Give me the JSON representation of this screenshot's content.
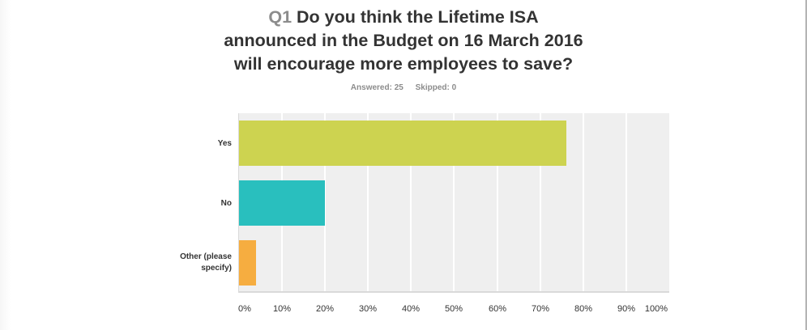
{
  "question": {
    "number": "Q1",
    "text_line1": "Do you think the Lifetime ISA",
    "text_line2": "announced in the Budget on 16 March 2016",
    "text_line3": "will encourage more employees to save?"
  },
  "stats": {
    "answered": "Answered: 25",
    "skipped": "Skipped: 0"
  },
  "chart_data": {
    "type": "bar",
    "orientation": "horizontal",
    "title": "Q1 Do you think the Lifetime ISA announced in the Budget on 16 March 2016 will encourage more employees to save?",
    "subtitle": "Answered: 25    Skipped: 0",
    "categories": [
      "Yes",
      "No",
      "Other (please specify)"
    ],
    "values": [
      76,
      20,
      4
    ],
    "colors": [
      "#cdd350",
      "#29bfbe",
      "#f6ad40"
    ],
    "xlabel": "",
    "ylabel": "",
    "xlim": [
      0,
      100
    ],
    "x_ticks": [
      "0%",
      "10%",
      "20%",
      "30%",
      "40%",
      "50%",
      "60%",
      "70%",
      "80%",
      "90%",
      "100%"
    ],
    "grid": true,
    "legend": false
  },
  "labels": {
    "yes": "Yes",
    "no": "No",
    "other_line1": "Other (please",
    "other_line2": "specify)"
  },
  "colors": {
    "plot_bg": "#efefef",
    "title_text": "#333333",
    "muted_text": "#8c8c8c"
  }
}
